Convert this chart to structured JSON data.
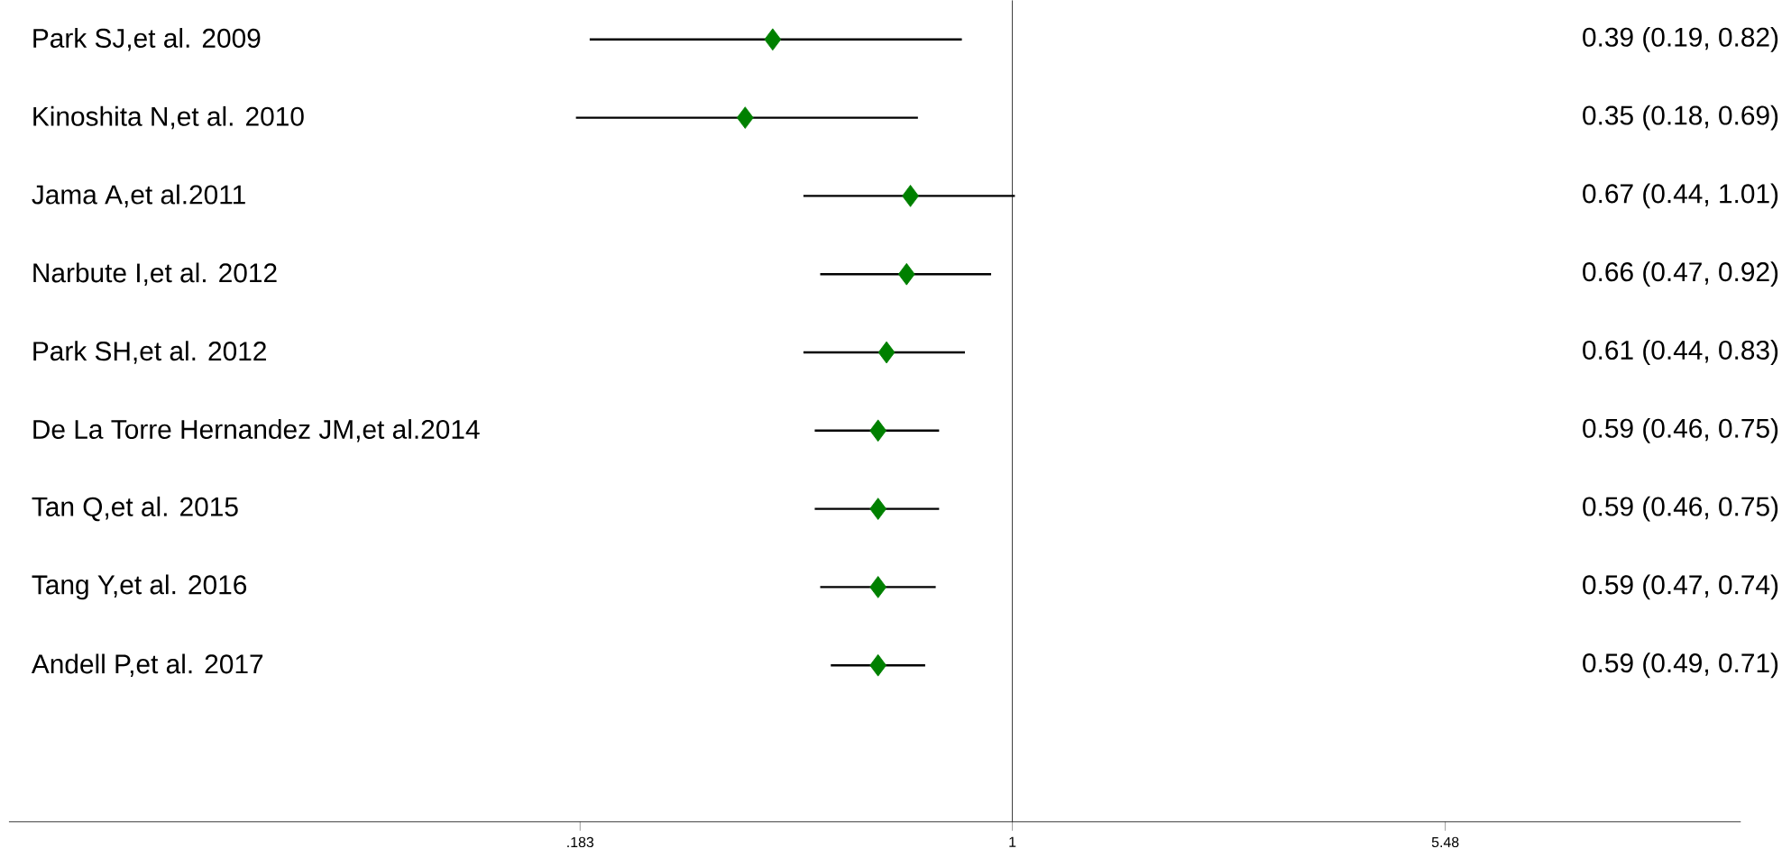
{
  "chart_data": {
    "type": "scatter",
    "orientation": "horizontal",
    "log": "x",
    "marker": "diamond",
    "color": "#008000",
    "categories": [
      "Park SJ,et al. 2009",
      "Kinoshita N,et al. 2010",
      "Jama A,et al.2011",
      "Narbute I,et al. 2012",
      "Park SH,et al. 2012",
      "De La Torre Hernandez JM,et al.2014",
      "Tan Q,et al. 2015",
      "Tang Y,et al. 2016",
      "Andell P,et al. 2017"
    ],
    "values": [
      0.39,
      0.35,
      0.67,
      0.66,
      0.61,
      0.59,
      0.59,
      0.59,
      0.59
    ],
    "errors": [
      [
        0.19,
        0.82
      ],
      [
        0.18,
        0.69
      ],
      [
        0.44,
        1.01
      ],
      [
        0.47,
        0.92
      ],
      [
        0.44,
        0.83
      ],
      [
        0.46,
        0.75
      ],
      [
        0.46,
        0.75
      ],
      [
        0.47,
        0.74
      ],
      [
        0.49,
        0.71
      ]
    ],
    "annotations": [
      "0.39 (0.19, 0.82)",
      "0.35 (0.18, 0.69)",
      "0.67 (0.44, 1.01)",
      "0.66 (0.47, 0.92)",
      "0.61 (0.44, 0.83)",
      "0.59 (0.46, 0.75)",
      "0.59 (0.46, 0.75)",
      "0.59 (0.47, 0.74)",
      "0.59 (0.49, 0.71)"
    ],
    "xlim": [
      0.0194,
      17.5
    ],
    "xticks": [
      {
        "value": 0.183,
        "label": ".183"
      },
      1,
      5.48
    ],
    "ref_lines": [
      {
        "axis": "x",
        "value": 1
      }
    ],
    "grid": false
  }
}
